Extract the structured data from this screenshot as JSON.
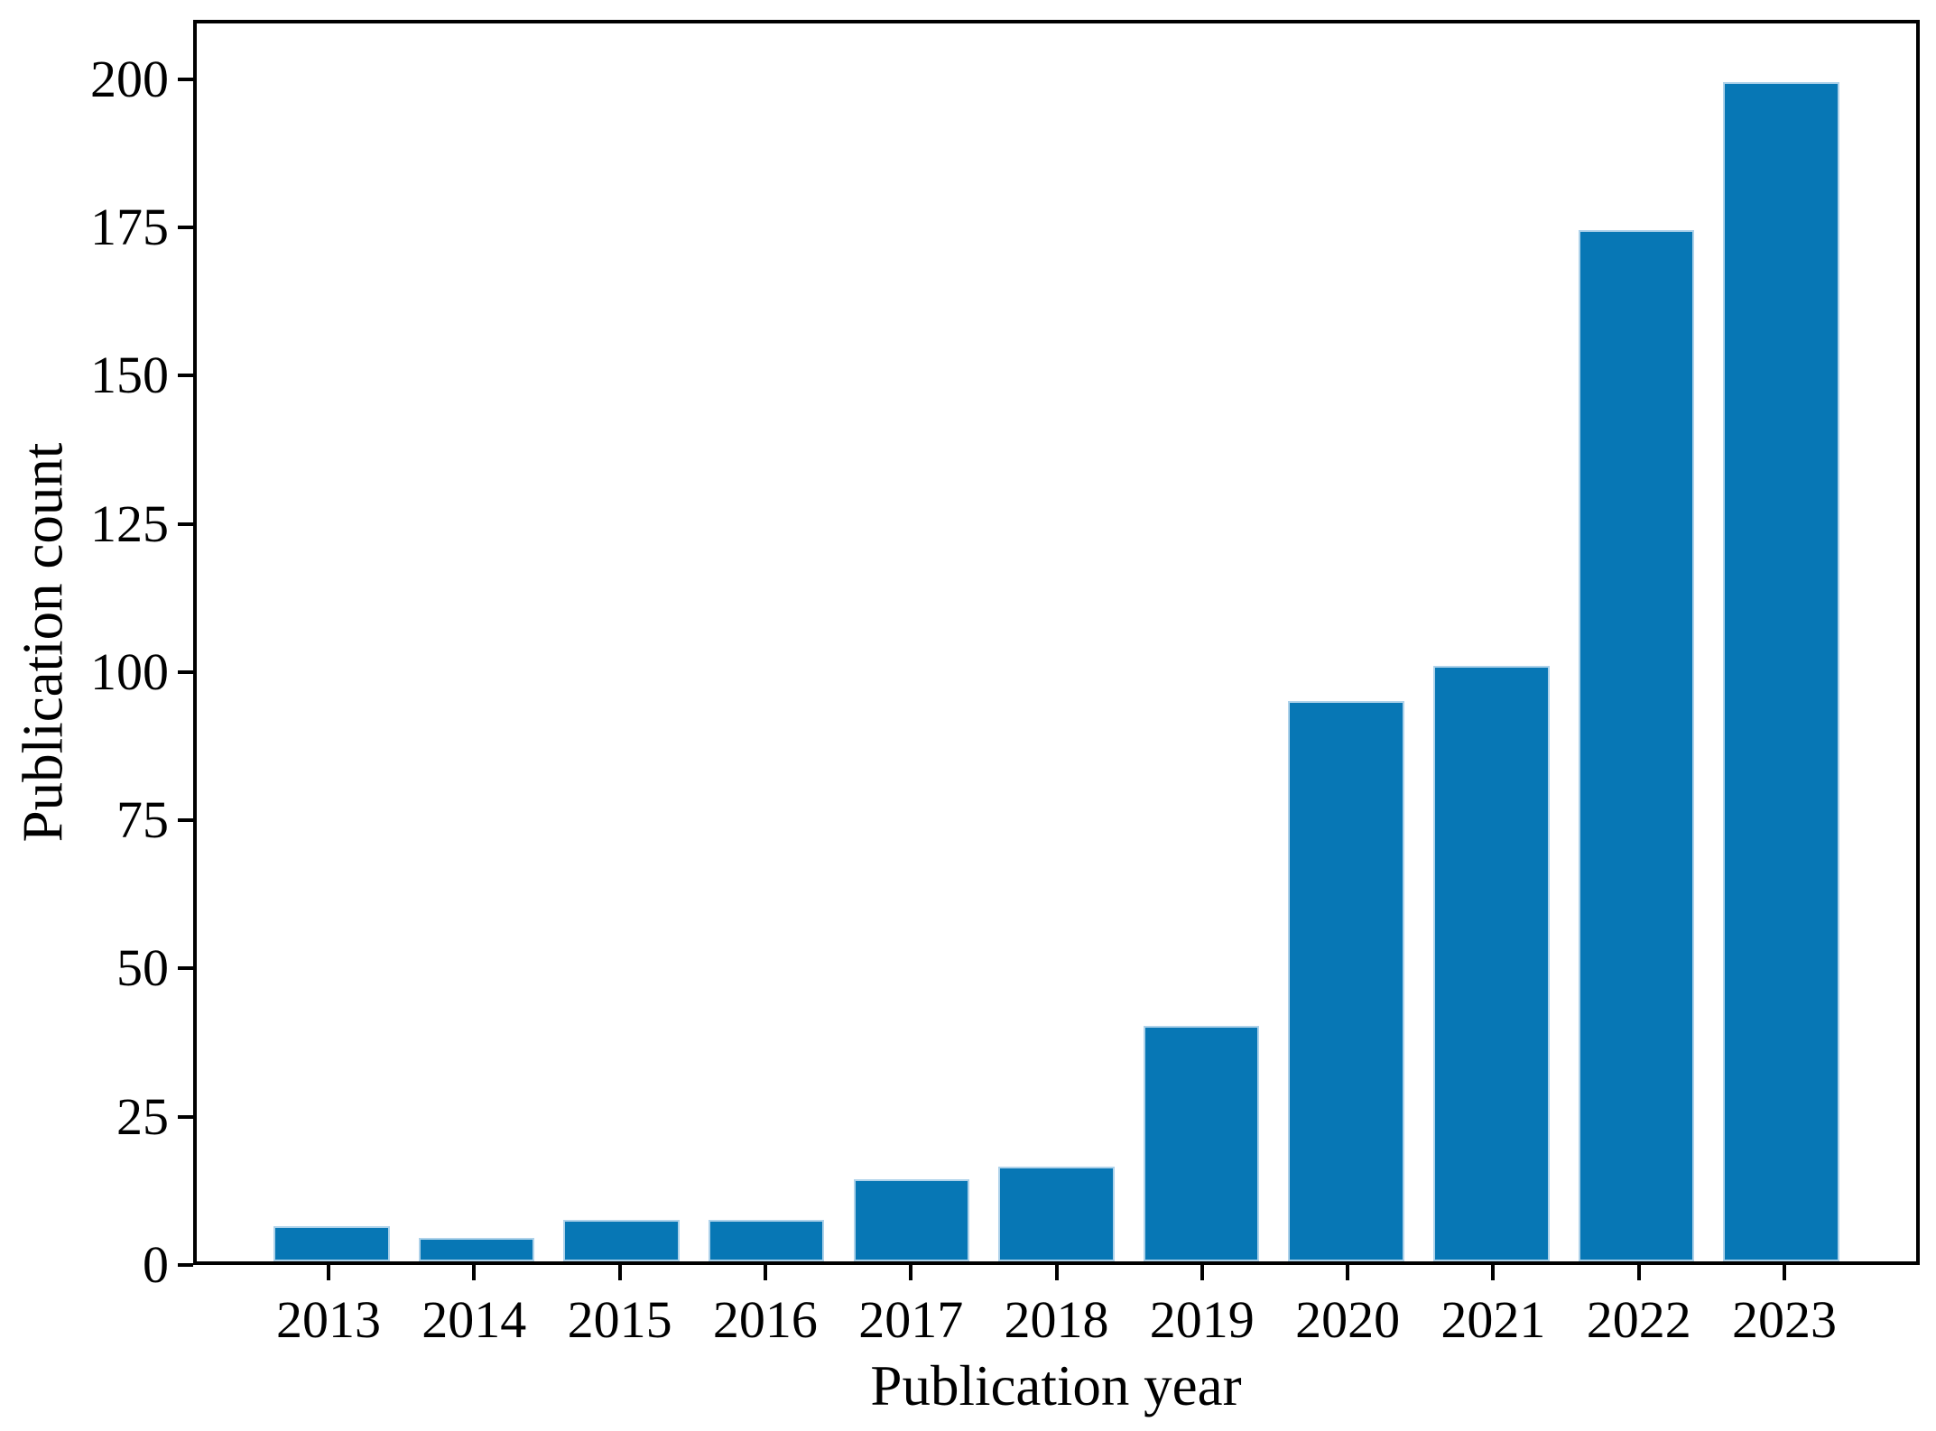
{
  "chart_data": {
    "type": "bar",
    "categories": [
      "2013",
      "2014",
      "2015",
      "2016",
      "2017",
      "2018",
      "2019",
      "2020",
      "2021",
      "2022",
      "2023"
    ],
    "values": [
      6,
      4,
      7,
      7,
      14,
      16,
      40,
      95,
      101,
      175,
      200
    ],
    "title": "",
    "xlabel": "Publication year",
    "ylabel": "Publication count",
    "ylim": [
      0,
      210
    ],
    "yticks": [
      0,
      25,
      50,
      75,
      100,
      125,
      150,
      175,
      200
    ],
    "grid": false,
    "legend": null,
    "bar_color": "#0777b5",
    "bar_edge_color": "#aed2ea",
    "axis_color": "#000000"
  }
}
